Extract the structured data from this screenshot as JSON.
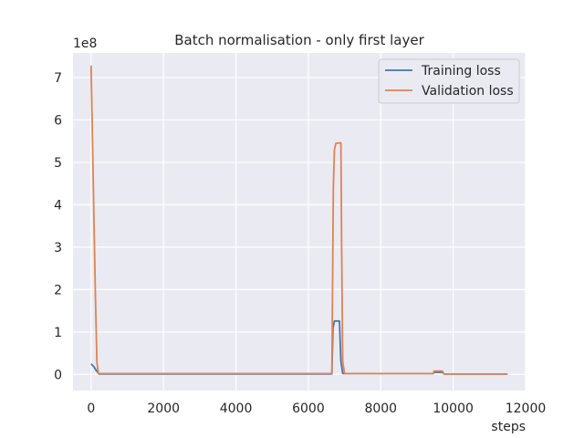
{
  "chart_data": {
    "type": "line",
    "title": "Batch normalisation - only first layer",
    "xlabel": "steps",
    "ylabel": "",
    "y_offset_label": "1e8",
    "xlim": [
      -500,
      12000
    ],
    "ylim": [
      -0.38,
      7.58
    ],
    "x_ticks": [
      0,
      2000,
      4000,
      6000,
      8000,
      10000,
      12000
    ],
    "x_tick_labels": [
      "0",
      "2000",
      "4000",
      "6000",
      "8000",
      "10000",
      "12000"
    ],
    "y_ticks": [
      0,
      1,
      2,
      3,
      4,
      5,
      6,
      7
    ],
    "y_tick_labels": [
      "0",
      "1",
      "2",
      "3",
      "4",
      "5",
      "6",
      "7"
    ],
    "grid": true,
    "legend_position": "top-right",
    "series": [
      {
        "name": "Training loss",
        "color": "#4c72b0",
        "points": [
          [
            0,
            0.25
          ],
          [
            80,
            0.18
          ],
          [
            150,
            0.08
          ],
          [
            220,
            0.01
          ],
          [
            6650,
            0.01
          ],
          [
            6680,
            1.1
          ],
          [
            6720,
            1.26
          ],
          [
            6860,
            1.26
          ],
          [
            6900,
            0.3
          ],
          [
            6950,
            0.02
          ],
          [
            9450,
            0.02
          ],
          [
            9470,
            0.05
          ],
          [
            9700,
            0.05
          ],
          [
            9750,
            0.01
          ],
          [
            11500,
            0.01
          ]
        ]
      },
      {
        "name": "Validation loss",
        "color": "#dd8452",
        "points": [
          [
            0,
            7.28
          ],
          [
            40,
            5.5
          ],
          [
            80,
            3.6
          ],
          [
            120,
            1.8
          ],
          [
            160,
            0.3
          ],
          [
            200,
            0.02
          ],
          [
            6650,
            0.02
          ],
          [
            6690,
            4.4
          ],
          [
            6720,
            5.3
          ],
          [
            6760,
            5.45
          ],
          [
            6900,
            5.46
          ],
          [
            6920,
            3.0
          ],
          [
            6950,
            0.3
          ],
          [
            7000,
            0.02
          ],
          [
            9450,
            0.02
          ],
          [
            9470,
            0.08
          ],
          [
            9700,
            0.08
          ],
          [
            9750,
            0.01
          ],
          [
            11500,
            0.01
          ]
        ]
      }
    ]
  }
}
